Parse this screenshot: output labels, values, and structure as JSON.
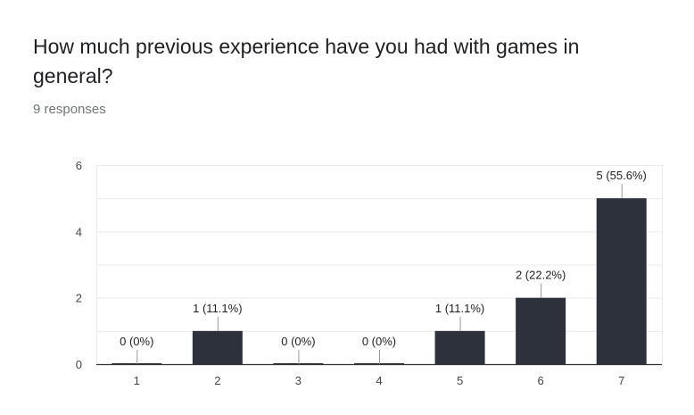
{
  "question": {
    "title": "How much previous experience have you had with games in general?",
    "responses": "9 responses"
  },
  "colors": {
    "bar": "#2c313c",
    "grid": "#ebebeb",
    "axis": "#333333",
    "tick_label": "#444444",
    "data_label": "#222222",
    "leader_line": "#999999"
  },
  "chart_data": {
    "type": "bar",
    "title": "",
    "xlabel": "",
    "ylabel": "",
    "categories": [
      "1",
      "2",
      "3",
      "4",
      "5",
      "6",
      "7"
    ],
    "values": [
      0,
      1,
      0,
      0,
      1,
      2,
      5
    ],
    "data_labels": [
      "0 (0%)",
      "1 (11.1%)",
      "0 (0%)",
      "0 (0%)",
      "1 (11.1%)",
      "2 (22.2%)",
      "5 (55.6%)"
    ],
    "ylim": [
      0,
      6
    ],
    "yticks": [
      0,
      2,
      4,
      6
    ],
    "grid": true,
    "legend": "none"
  }
}
